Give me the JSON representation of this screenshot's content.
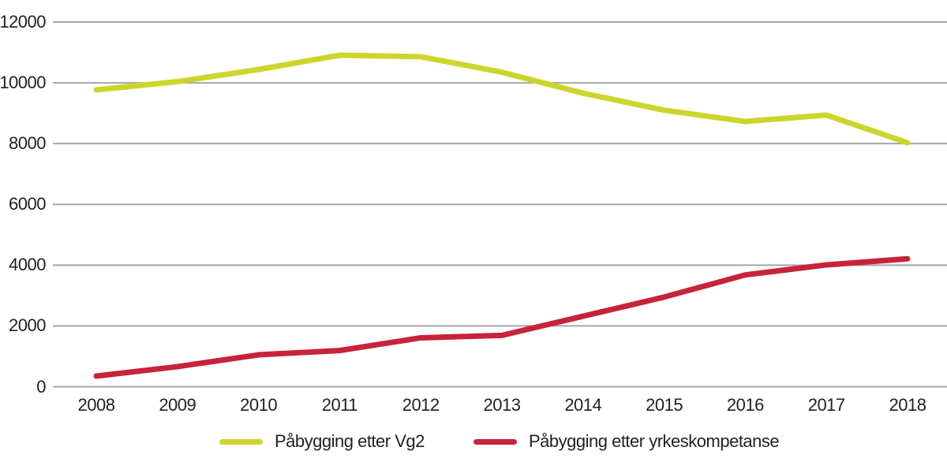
{
  "chart_data": {
    "type": "line",
    "categories": [
      "2008",
      "2009",
      "2010",
      "2011",
      "2012",
      "2013",
      "2014",
      "2015",
      "2016",
      "2017",
      "2018"
    ],
    "series": [
      {
        "name": "Påbygging etter Vg2",
        "color": "#cdd52d",
        "values": [
          9770,
          10040,
          10440,
          10910,
          10860,
          10350,
          9660,
          9100,
          8730,
          8940,
          8030
        ]
      },
      {
        "name": "Påbygging etter yrkeskompetanse",
        "color": "#c7233a",
        "values": [
          350,
          660,
          1050,
          1190,
          1610,
          1690,
          2320,
          2950,
          3680,
          4010,
          4210
        ]
      }
    ],
    "yticks": [
      0,
      2000,
      4000,
      6000,
      8000,
      10000,
      12000
    ],
    "ylim": [
      0,
      12000
    ],
    "grid": "horizontal-only",
    "legend_position": "bottom"
  },
  "colors": {
    "grid": "#a6a6a6",
    "text": "#231f20",
    "background": "#ffffff"
  }
}
